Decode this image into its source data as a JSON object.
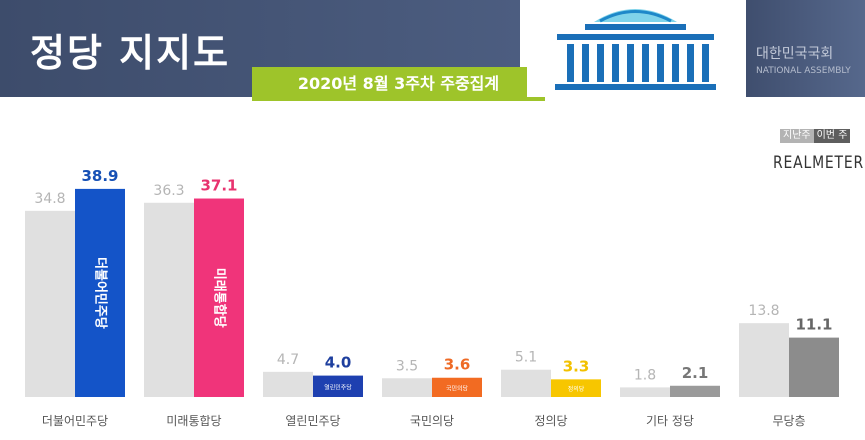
{
  "header": {
    "title": "정당 지지도",
    "subtitle": "2020년 8월 3주차 주중집계",
    "assembly_ko": "대한민국국회",
    "assembly_en": "NATIONAL ASSEMBLY"
  },
  "legend": {
    "prev": "지난주",
    "curr": "이번 주"
  },
  "brand": "REALMETER",
  "colors": {
    "prev_bar": "#e0e0e0",
    "prev_label": "#b5b5b5",
    "accent_green": "#9ec42a",
    "title_bg": "#45557a"
  },
  "chart_data": {
    "type": "bar",
    "title": "정당 지지도",
    "subtitle": "2020년 8월 3주차 주중집계",
    "categories": [
      "더불어민주당",
      "미래통합당",
      "열린민주당",
      "국민의당",
      "정의당",
      "기타 정당",
      "무당층"
    ],
    "series": [
      {
        "name": "지난주",
        "values": [
          34.8,
          36.3,
          4.7,
          3.5,
          5.1,
          1.8,
          13.8
        ]
      },
      {
        "name": "이번 주",
        "values": [
          38.9,
          37.1,
          4.0,
          3.6,
          3.3,
          2.1,
          11.1
        ]
      }
    ],
    "current_colors": [
      "#1454c8",
      "#f0347a",
      "#1e40b0",
      "#f26b22",
      "#f7c600",
      "#9a9a9a",
      "#8c8c8c"
    ],
    "current_label_colors": [
      "#1650b5",
      "#e8336f",
      "#1e3f9e",
      "#ee6a25",
      "#f2c100",
      "#777777",
      "#666666"
    ],
    "bar_party_labels": [
      "더불어민주당",
      "미래통합당",
      "열린민주당",
      "국민의당",
      "정의당",
      "",
      ""
    ],
    "ylim": [
      0,
      42
    ],
    "grid": false,
    "legend": "top-right"
  }
}
